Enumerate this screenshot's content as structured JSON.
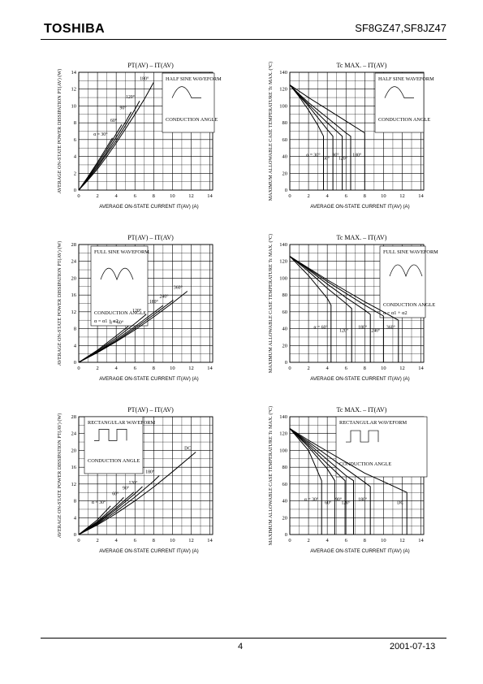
{
  "header": {
    "logo": "TOSHIBA",
    "part_number": "SF8GZ47,SF8JZ47"
  },
  "footer": {
    "page": "4",
    "date": "2001-07-13"
  },
  "charts": [
    {
      "title": "PT(AV) – IT(AV)",
      "ylabel": "AVERAGE ON-STATE POWER DISSIPATION PT(AV) (W)",
      "xlabel": "AVERAGE ON-STATE CURRENT IT(AV) (A)",
      "waveform": "HALF SINE WAVEFORM",
      "angle_label": "CONDUCTION ANGLE",
      "extra_note": "",
      "xticks": [
        "0",
        "2",
        "4",
        "6",
        "8",
        "10",
        "12",
        "14"
      ],
      "yticks": [
        "0",
        "2",
        "4",
        "6",
        "8",
        "10",
        "12",
        "14"
      ],
      "series": [
        {
          "name": "α = 30°"
        },
        {
          "name": "60°"
        },
        {
          "name": "90°"
        },
        {
          "name": "120°"
        },
        {
          "name": "180°"
        }
      ]
    },
    {
      "title": "Tc MAX. – IT(AV)",
      "ylabel": "MAXIMUM ALLOWABLE CASE TEMPERATURE Tc MAX. (°C)",
      "xlabel": "AVERAGE ON-STATE CURRENT IT(AV) (A)",
      "waveform": "HALF SINE WAVEFORM",
      "angle_label": "CONDUCTION ANGLE",
      "extra_note": "",
      "xticks": [
        "0",
        "2",
        "4",
        "6",
        "8",
        "10",
        "12",
        "14"
      ],
      "yticks": [
        "0",
        "20",
        "40",
        "60",
        "80",
        "100",
        "120",
        "140"
      ],
      "series": [
        {
          "name": "α = 30°"
        },
        {
          "name": "60°"
        },
        {
          "name": "90°"
        },
        {
          "name": "120°"
        },
        {
          "name": "180°"
        }
      ]
    },
    {
      "title": "PT(AV) – IT(AV)",
      "ylabel": "AVERAGE ON-STATE POWER DISSIPATION PT(AV) (W)",
      "xlabel": "AVERAGE ON-STATE CURRENT IT(AV) (A)",
      "waveform": "FULL SINE WAVEFORM",
      "angle_label": "CONDUCTION ANGLE",
      "extra_note": "α = α1 + α2",
      "xticks": [
        "0",
        "2",
        "4",
        "6",
        "8",
        "10",
        "12",
        "14"
      ],
      "yticks": [
        "0",
        "4",
        "8",
        "12",
        "16",
        "20",
        "24",
        "28"
      ],
      "series": [
        {
          "name": "α = 60°"
        },
        {
          "name": "120°"
        },
        {
          "name": "180°"
        },
        {
          "name": "240°"
        },
        {
          "name": "360°"
        }
      ]
    },
    {
      "title": "Tc MAX. – IT(AV)",
      "ylabel": "MAXIMUM ALLOWABLE CASE TEMPERATURE Tc MAX. (°C)",
      "xlabel": "AVERAGE ON-STATE CURRENT IT(AV) (A)",
      "waveform": "FULL SINE WAVEFORM",
      "angle_label": "CONDUCTION ANGLE",
      "extra_note": "α = α1 + α2",
      "xticks": [
        "0",
        "2",
        "4",
        "6",
        "8",
        "10",
        "12",
        "14"
      ],
      "yticks": [
        "0",
        "20",
        "40",
        "60",
        "80",
        "100",
        "120",
        "140"
      ],
      "series": [
        {
          "name": "α = 60°"
        },
        {
          "name": "120°"
        },
        {
          "name": "180°"
        },
        {
          "name": "240°"
        },
        {
          "name": "360°"
        }
      ]
    },
    {
      "title": "PT(AV) – IT(AV)",
      "ylabel": "AVERAGE ON-STATE POWER DISSIPATION PT(AV) (W)",
      "xlabel": "AVERAGE ON-STATE CURRENT IT(AV) (A)",
      "waveform": "RECTANGULAR WAVEFORM",
      "angle_label": "CONDUCTION ANGLE",
      "extra_note": "",
      "xticks": [
        "0",
        "2",
        "4",
        "6",
        "8",
        "10",
        "12",
        "14"
      ],
      "yticks": [
        "0",
        "4",
        "8",
        "12",
        "16",
        "20",
        "24",
        "28"
      ],
      "series": [
        {
          "name": "α = 30°"
        },
        {
          "name": "60°"
        },
        {
          "name": "90°"
        },
        {
          "name": "120°"
        },
        {
          "name": "180°"
        },
        {
          "name": "DC"
        }
      ]
    },
    {
      "title": "Tc MAX. – IT(AV)",
      "ylabel": "MAXIMUM ALLOWABLE CASE TEMPERATURE Tc MAX. (°C)",
      "xlabel": "AVERAGE ON-STATE CURRENT IT(AV) (A)",
      "waveform": "RECTANGULAR WAVEFORM",
      "angle_label": "CONDUCTION ANGLE",
      "extra_note": "",
      "xticks": [
        "0",
        "2",
        "4",
        "6",
        "8",
        "10",
        "12",
        "14"
      ],
      "yticks": [
        "0",
        "20",
        "40",
        "60",
        "80",
        "100",
        "120",
        "140"
      ],
      "series": [
        {
          "name": "α = 30°"
        },
        {
          "name": "60°"
        },
        {
          "name": "90°"
        },
        {
          "name": "120°"
        },
        {
          "name": "180°"
        },
        {
          "name": "DC"
        }
      ]
    }
  ],
  "chart_data": [
    {
      "type": "line",
      "title": "PT(AV) – IT(AV)",
      "xlim": [
        0,
        14
      ],
      "ylim": [
        0,
        14
      ],
      "series": [
        {
          "name": "α = 30°",
          "x": [
            0,
            1,
            2,
            3,
            3.6
          ],
          "y": [
            0,
            1.6,
            3.3,
            5.1,
            6.2
          ]
        },
        {
          "name": "60°",
          "x": [
            0,
            1,
            2,
            3,
            4,
            4.6
          ],
          "y": [
            0,
            1.5,
            3.1,
            4.8,
            6.7,
            7.8
          ]
        },
        {
          "name": "90°",
          "x": [
            0,
            1,
            2,
            3,
            4,
            5,
            5.6
          ],
          "y": [
            0,
            1.4,
            2.9,
            4.5,
            6.3,
            8.1,
            9.3
          ]
        },
        {
          "name": "120°",
          "x": [
            0,
            1,
            2,
            3,
            4,
            5,
            6,
            6.5
          ],
          "y": [
            0,
            1.3,
            2.7,
            4.3,
            5.9,
            7.7,
            9.6,
            10.6
          ]
        },
        {
          "name": "180°",
          "x": [
            0,
            1,
            2,
            3,
            4,
            5,
            6,
            7,
            8
          ],
          "y": [
            0,
            1.2,
            2.5,
            4.0,
            5.6,
            7.3,
            9.0,
            10.8,
            12.8
          ]
        }
      ]
    },
    {
      "type": "line",
      "title": "Tc MAX. – IT(AV)",
      "xlim": [
        0,
        14
      ],
      "ylim": [
        0,
        140
      ],
      "series": [
        {
          "name": "α = 30°",
          "x": [
            0,
            1,
            2,
            3,
            3.6,
            3.6
          ],
          "y": [
            125,
            111,
            95,
            77,
            64,
            0
          ]
        },
        {
          "name": "60°",
          "x": [
            0,
            1,
            2,
            3,
            4,
            4.6,
            4.6
          ],
          "y": [
            125,
            112,
            100,
            86,
            72,
            64,
            0
          ]
        },
        {
          "name": "90°",
          "x": [
            0,
            1,
            2,
            3,
            4,
            5,
            5.6,
            5.6
          ],
          "y": [
            125,
            113,
            102,
            91,
            80,
            70,
            64,
            0
          ]
        },
        {
          "name": "120°",
          "x": [
            0,
            1,
            2,
            3,
            4,
            5,
            6,
            6.5,
            6.5
          ],
          "y": [
            125,
            114,
            104,
            95,
            86,
            77,
            68,
            64,
            0
          ]
        },
        {
          "name": "180°",
          "x": [
            0,
            2,
            4,
            6,
            8,
            8
          ],
          "y": [
            125,
            110,
            96,
            82,
            68,
            0
          ]
        }
      ]
    },
    {
      "type": "line",
      "title": "PT(AV) – IT(AV)",
      "xlim": [
        0,
        14
      ],
      "ylim": [
        0,
        28
      ],
      "series": [
        {
          "name": "α = 60°",
          "x": [
            0,
            2,
            4,
            5.3
          ],
          "y": [
            0,
            2.9,
            6.3,
            8.6
          ]
        },
        {
          "name": "120°",
          "x": [
            0,
            2,
            4,
            6,
            7.2
          ],
          "y": [
            0,
            2.7,
            5.8,
            9.2,
            11.4
          ]
        },
        {
          "name": "180°",
          "x": [
            0,
            2,
            4,
            6,
            8,
            9
          ],
          "y": [
            0,
            2.5,
            5.4,
            8.5,
            11.8,
            13.5
          ]
        },
        {
          "name": "240°",
          "x": [
            0,
            2,
            4,
            6,
            8,
            10.1
          ],
          "y": [
            0,
            2.4,
            5.1,
            8.1,
            11.3,
            14.8
          ]
        },
        {
          "name": "360°",
          "x": [
            0,
            2,
            4,
            6,
            8,
            10,
            11.6
          ],
          "y": [
            0,
            2.3,
            4.9,
            7.7,
            10.8,
            14.1,
            16.9
          ]
        }
      ]
    },
    {
      "type": "line",
      "title": "Tc MAX. – IT(AV)",
      "xlim": [
        0,
        14
      ],
      "ylim": [
        0,
        140
      ],
      "series": [
        {
          "name": "α = 60°",
          "x": [
            0,
            2,
            4,
            4.4,
            4.4
          ],
          "y": [
            126,
            103,
            76,
            68,
            0
          ]
        },
        {
          "name": "120°",
          "x": [
            0,
            2,
            4,
            6,
            6.6,
            6.6
          ],
          "y": [
            126,
            108,
            88,
            70,
            64,
            0
          ]
        },
        {
          "name": "180°",
          "x": [
            0,
            2,
            4,
            6,
            8,
            8.6,
            8.6
          ],
          "y": [
            126,
            110,
            93,
            77,
            62,
            57,
            0
          ]
        },
        {
          "name": "240°",
          "x": [
            0,
            2,
            4,
            6,
            8,
            10,
            10,
            10
          ],
          "y": [
            126,
            111,
            96,
            82,
            68,
            55,
            55,
            0
          ]
        },
        {
          "name": "360°",
          "x": [
            0,
            2,
            4,
            6,
            8,
            10,
            11.6,
            11.6
          ],
          "y": [
            126,
            112,
            98,
            85,
            72,
            60,
            50,
            0
          ]
        }
      ]
    },
    {
      "type": "line",
      "title": "PT(AV) – IT(AV)",
      "xlim": [
        0,
        14
      ],
      "ylim": [
        0,
        28
      ],
      "series": [
        {
          "name": "α = 30°",
          "x": [
            0,
            2,
            3.4
          ],
          "y": [
            0,
            3.5,
            6.8
          ]
        },
        {
          "name": "60°",
          "x": [
            0,
            2,
            4,
            4.8
          ],
          "y": [
            0,
            3.1,
            7.0,
            8.8
          ]
        },
        {
          "name": "90°",
          "x": [
            0,
            2,
            4,
            5.9
          ],
          "y": [
            0,
            2.9,
            6.4,
            10.1
          ]
        },
        {
          "name": "120°",
          "x": [
            0,
            2,
            4,
            6,
            6.8
          ],
          "y": [
            0,
            2.7,
            6.0,
            9.7,
            11.4
          ]
        },
        {
          "name": "180°",
          "x": [
            0,
            2,
            4,
            6,
            8,
            8.6
          ],
          "y": [
            0,
            2.5,
            5.5,
            8.9,
            12.7,
            14.0
          ]
        },
        {
          "name": "DC",
          "x": [
            0,
            2,
            4,
            6,
            8,
            10,
            12.5
          ],
          "y": [
            0,
            2.3,
            5.0,
            8.0,
            11.3,
            14.9,
            19.6
          ]
        }
      ]
    },
    {
      "type": "line",
      "title": "Tc MAX. – IT(AV)",
      "xlim": [
        0,
        14
      ],
      "ylim": [
        0,
        140
      ],
      "series": [
        {
          "name": "α = 30°",
          "x": [
            0,
            2,
            3.4,
            3.4
          ],
          "y": [
            126,
            100,
            64,
            0
          ]
        },
        {
          "name": "60°",
          "x": [
            0,
            2,
            4,
            4.8,
            4.8
          ],
          "y": [
            126,
            104,
            78,
            64,
            0
          ]
        },
        {
          "name": "90°",
          "x": [
            0,
            2,
            4,
            5.9,
            5.9
          ],
          "y": [
            126,
            106,
            84,
            64,
            0
          ]
        },
        {
          "name": "120°",
          "x": [
            0,
            2,
            4,
            6,
            6.8,
            6.8
          ],
          "y": [
            126,
            108,
            89,
            70,
            64,
            0
          ]
        },
        {
          "name": "180°",
          "x": [
            0,
            2,
            4,
            6,
            8,
            8.6,
            8.6
          ],
          "y": [
            126,
            110,
            94,
            78,
            62,
            57,
            0
          ]
        },
        {
          "name": "DC",
          "x": [
            0,
            2,
            4,
            6,
            8,
            10,
            12.5,
            12.5
          ],
          "y": [
            126,
            112,
            99,
            86,
            73,
            63,
            50,
            0
          ]
        }
      ]
    }
  ]
}
